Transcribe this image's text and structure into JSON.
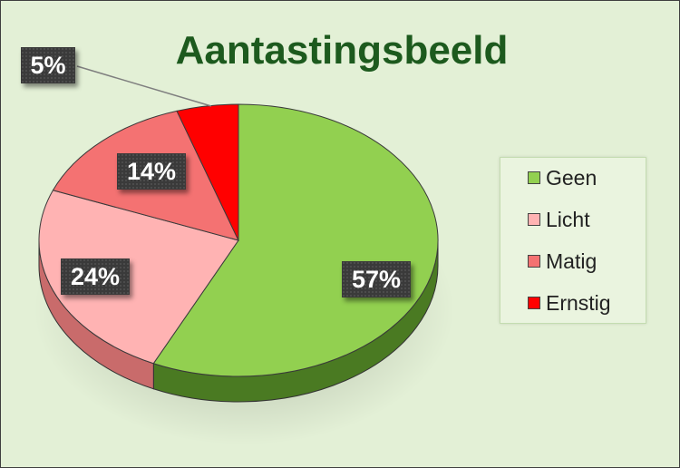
{
  "chart_data": {
    "type": "pie",
    "title": "Aantastingsbeeld",
    "categories": [
      "Geen",
      "Licht",
      "Matig",
      "Ernstig"
    ],
    "values": [
      57,
      24,
      14,
      5
    ],
    "labels": [
      "57%",
      "24%",
      "14%",
      "5%"
    ],
    "colors": [
      "#92d050",
      "#ffb3b3",
      "#f47272",
      "#ff0000"
    ],
    "side_colors": [
      "#4a7a22",
      "#c96b6b",
      "#c94848",
      "#a80000"
    ],
    "legend_position": "right",
    "style": "3d"
  }
}
